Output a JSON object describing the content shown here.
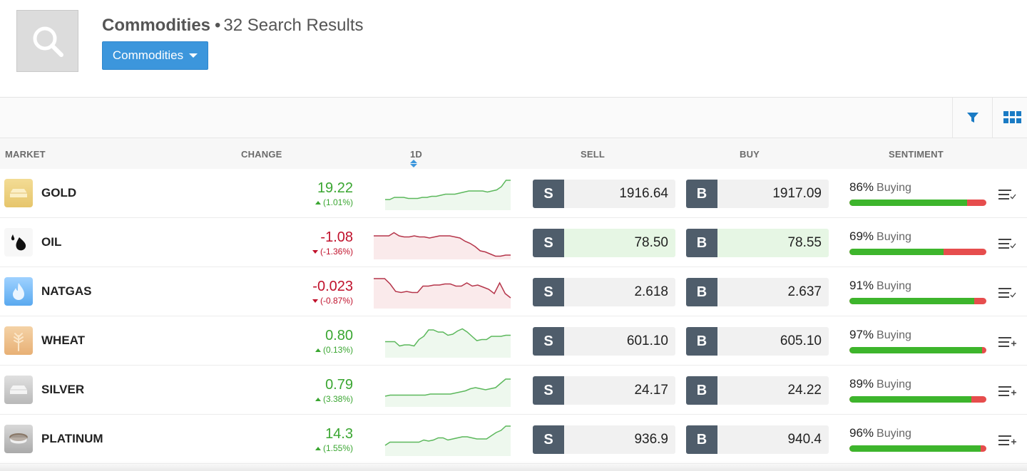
{
  "header": {
    "search_icon": "search-icon",
    "title": "Commodities",
    "separator": "•",
    "result_count": "32 Search Results",
    "category_button": "Commodities"
  },
  "toolbar": {
    "filter_icon": "filter-icon",
    "grid_icon": "grid-view-icon",
    "accent_color": "#1a7bc4"
  },
  "columns": {
    "market": "MARKET",
    "change": "CHANGE",
    "period": "1D",
    "sell": "SELL",
    "buy": "BUY",
    "sentiment": "SENTIMENT"
  },
  "colors": {
    "positive": "#3aa631",
    "negative": "#c0122c",
    "buy_bar": "#3db52c",
    "sell_bar": "#e64d4d",
    "trade_tag": "#4f5d6b",
    "primary_button": "#3c96dc"
  },
  "rows": [
    {
      "name": "GOLD",
      "icon": "gold-bar-icon",
      "change": "19.22",
      "change_pct": "(1.01%)",
      "direction": "up",
      "sell_tag": "S",
      "sell": "1916.64",
      "buy_tag": "B",
      "buy": "1917.09",
      "highlight": false,
      "sentiment_pct": "86%",
      "sentiment_label": "Buying",
      "sentiment_value": 86,
      "watch_icon": "watchlist-added-icon",
      "spark": [
        40,
        40,
        42,
        42,
        42,
        41,
        41,
        41,
        42,
        42,
        43,
        43,
        44,
        45,
        45,
        45,
        46,
        47,
        48,
        48,
        48,
        48,
        47,
        48,
        49,
        52,
        58,
        58
      ]
    },
    {
      "name": "OIL",
      "icon": "oil-drops-icon",
      "change": "-1.08",
      "change_pct": "(-1.36%)",
      "direction": "down",
      "sell_tag": "S",
      "sell": "78.50",
      "buy_tag": "B",
      "buy": "78.55",
      "highlight": true,
      "sentiment_pct": "69%",
      "sentiment_label": "Buying",
      "sentiment_value": 69,
      "watch_icon": "watchlist-added-icon",
      "spark": [
        52,
        52,
        52,
        52,
        55,
        52,
        51,
        51,
        52,
        51,
        51,
        50,
        51,
        52,
        52,
        52,
        51,
        50,
        47,
        45,
        42,
        38,
        37,
        35,
        33,
        33,
        34,
        34
      ]
    },
    {
      "name": "NATGAS",
      "icon": "flame-icon",
      "change": "-0.023",
      "change_pct": "(-0.87%)",
      "direction": "down",
      "sell_tag": "S",
      "sell": "2.618",
      "buy_tag": "B",
      "buy": "2.637",
      "highlight": false,
      "sentiment_pct": "91%",
      "sentiment_label": "Buying",
      "sentiment_value": 91,
      "watch_icon": "watchlist-added-icon",
      "spark": [
        58,
        58,
        58,
        53,
        46,
        45,
        46,
        45,
        45,
        51,
        51,
        52,
        52,
        53,
        53,
        51,
        51,
        54,
        51,
        52,
        50,
        48,
        44,
        54,
        44,
        40
      ]
    },
    {
      "name": "WHEAT",
      "icon": "wheat-icon",
      "change": "0.80",
      "change_pct": "(0.13%)",
      "direction": "up",
      "sell_tag": "S",
      "sell": "601.10",
      "buy_tag": "B",
      "buy": "605.10",
      "highlight": false,
      "sentiment_pct": "97%",
      "sentiment_label": "Buying",
      "sentiment_value": 97,
      "watch_icon": "watchlist-add-icon",
      "spark": [
        45,
        45,
        45,
        41,
        42,
        42,
        41,
        47,
        50,
        56,
        56,
        54,
        54,
        51,
        52,
        55,
        57,
        54,
        50,
        46,
        47,
        47,
        50,
        50,
        50,
        51,
        51
      ]
    },
    {
      "name": "SILVER",
      "icon": "silver-bar-icon",
      "change": "0.79",
      "change_pct": "(3.38%)",
      "direction": "up",
      "sell_tag": "S",
      "sell": "24.17",
      "buy_tag": "B",
      "buy": "24.22",
      "highlight": false,
      "sentiment_pct": "89%",
      "sentiment_label": "Buying",
      "sentiment_value": 89,
      "watch_icon": "watchlist-add-icon",
      "spark": [
        40,
        41,
        41,
        41,
        41,
        41,
        41,
        41,
        41,
        42,
        42,
        42,
        42,
        42,
        43,
        44,
        45,
        47,
        48,
        47,
        46,
        47,
        48,
        52,
        56,
        56
      ]
    },
    {
      "name": "PLATINUM",
      "icon": "platinum-ring-icon",
      "change": "14.3",
      "change_pct": "(1.55%)",
      "direction": "up",
      "sell_tag": "S",
      "sell": "936.9",
      "buy_tag": "B",
      "buy": "940.4",
      "highlight": false,
      "sentiment_pct": "96%",
      "sentiment_label": "Buying",
      "sentiment_value": 96,
      "watch_icon": "watchlist-add-icon",
      "spark": [
        40,
        43,
        43,
        43,
        43,
        43,
        43,
        43,
        45,
        44,
        45,
        47,
        47,
        45,
        46,
        47,
        48,
        48,
        47,
        46,
        46,
        46,
        49,
        52,
        54,
        58,
        58
      ]
    }
  ]
}
